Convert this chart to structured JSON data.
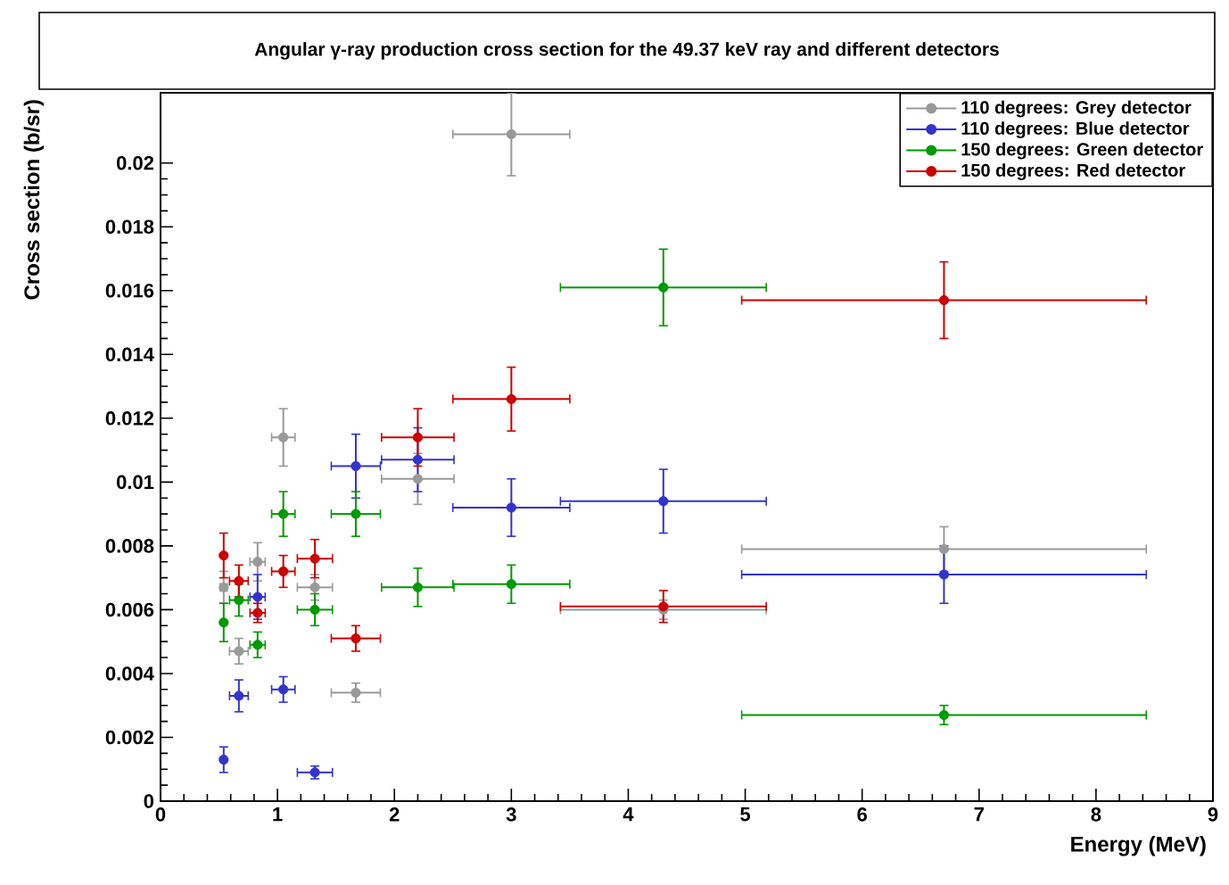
{
  "chart_data": {
    "type": "scatter",
    "title": "Angular γ-ray production cross section for the 49.37 keV ray and different detectors",
    "xlabel": "Energy (MeV)",
    "ylabel": "Cross section (b/sr)",
    "x": [
      0.54,
      0.67,
      0.83,
      1.05,
      1.32,
      1.67,
      2.2,
      3.0,
      4.3,
      6.7
    ],
    "series": [
      {
        "name": "110 degrees: Grey detector",
        "color": "#999999",
        "values": [
          0.0067,
          0.0047,
          0.0075,
          0.0114,
          0.0067,
          0.0034,
          0.0101,
          0.0209,
          0.006,
          0.0079
        ],
        "errors": [
          0.0005,
          0.0004,
          0.0006,
          0.0009,
          0.0004,
          0.0003,
          0.0008,
          0.0013,
          0.0003,
          0.0007
        ],
        "xerrors": [
          0.03,
          0.08,
          0.065,
          0.1,
          0.15,
          0.21,
          0.31,
          0.5,
          0.88,
          1.73
        ]
      },
      {
        "name": "110 degrees: Blue detector",
        "color": "#3333cc",
        "values": [
          0.0013,
          0.0033,
          0.0064,
          0.0035,
          0.0009,
          0.0105,
          0.0107,
          0.0092,
          0.0094,
          0.0071
        ],
        "errors": [
          0.0004,
          0.0005,
          0.0007,
          0.0004,
          0.0002,
          0.001,
          0.001,
          0.0009,
          0.001,
          0.0009
        ],
        "xerrors": [
          null,
          0.08,
          0.065,
          0.1,
          0.15,
          0.21,
          0.31,
          0.5,
          0.88,
          1.73
        ]
      },
      {
        "name": "150 degrees: Green detector",
        "color": "#009900",
        "values": [
          0.0056,
          0.0063,
          0.0049,
          0.009,
          0.006,
          0.009,
          0.0067,
          0.0068,
          0.0161,
          0.0027
        ],
        "errors": [
          0.0006,
          0.0005,
          0.0004,
          0.0007,
          0.0005,
          0.0007,
          0.0006,
          0.0006,
          0.0012,
          0.0003
        ],
        "xerrors": [
          null,
          0.08,
          0.065,
          0.1,
          0.15,
          0.21,
          0.31,
          0.5,
          0.88,
          1.73
        ]
      },
      {
        "name": "150 degrees: Red detector",
        "color": "#cc0000",
        "values": [
          0.0077,
          0.0069,
          0.0059,
          0.0072,
          0.0076,
          0.0051,
          0.0114,
          0.0126,
          0.0061,
          0.0157
        ],
        "errors": [
          0.0007,
          0.0005,
          0.0003,
          0.0005,
          0.0006,
          0.0004,
          0.0009,
          0.001,
          0.0005,
          0.0012
        ],
        "xerrors": [
          null,
          0.08,
          0.065,
          0.1,
          0.15,
          0.21,
          0.31,
          0.5,
          0.88,
          1.73
        ]
      }
    ],
    "xlim": [
      0,
      9
    ],
    "ylim": [
      0,
      0.0222
    ],
    "xticks": [
      0,
      1,
      2,
      3,
      4,
      5,
      6,
      7,
      8,
      9
    ],
    "yticks": [
      0,
      0.002,
      0.004,
      0.006,
      0.008,
      0.01,
      0.012,
      0.014,
      0.016,
      0.018,
      0.02
    ],
    "legend": "top right",
    "marker": "circle",
    "grid": false
  }
}
